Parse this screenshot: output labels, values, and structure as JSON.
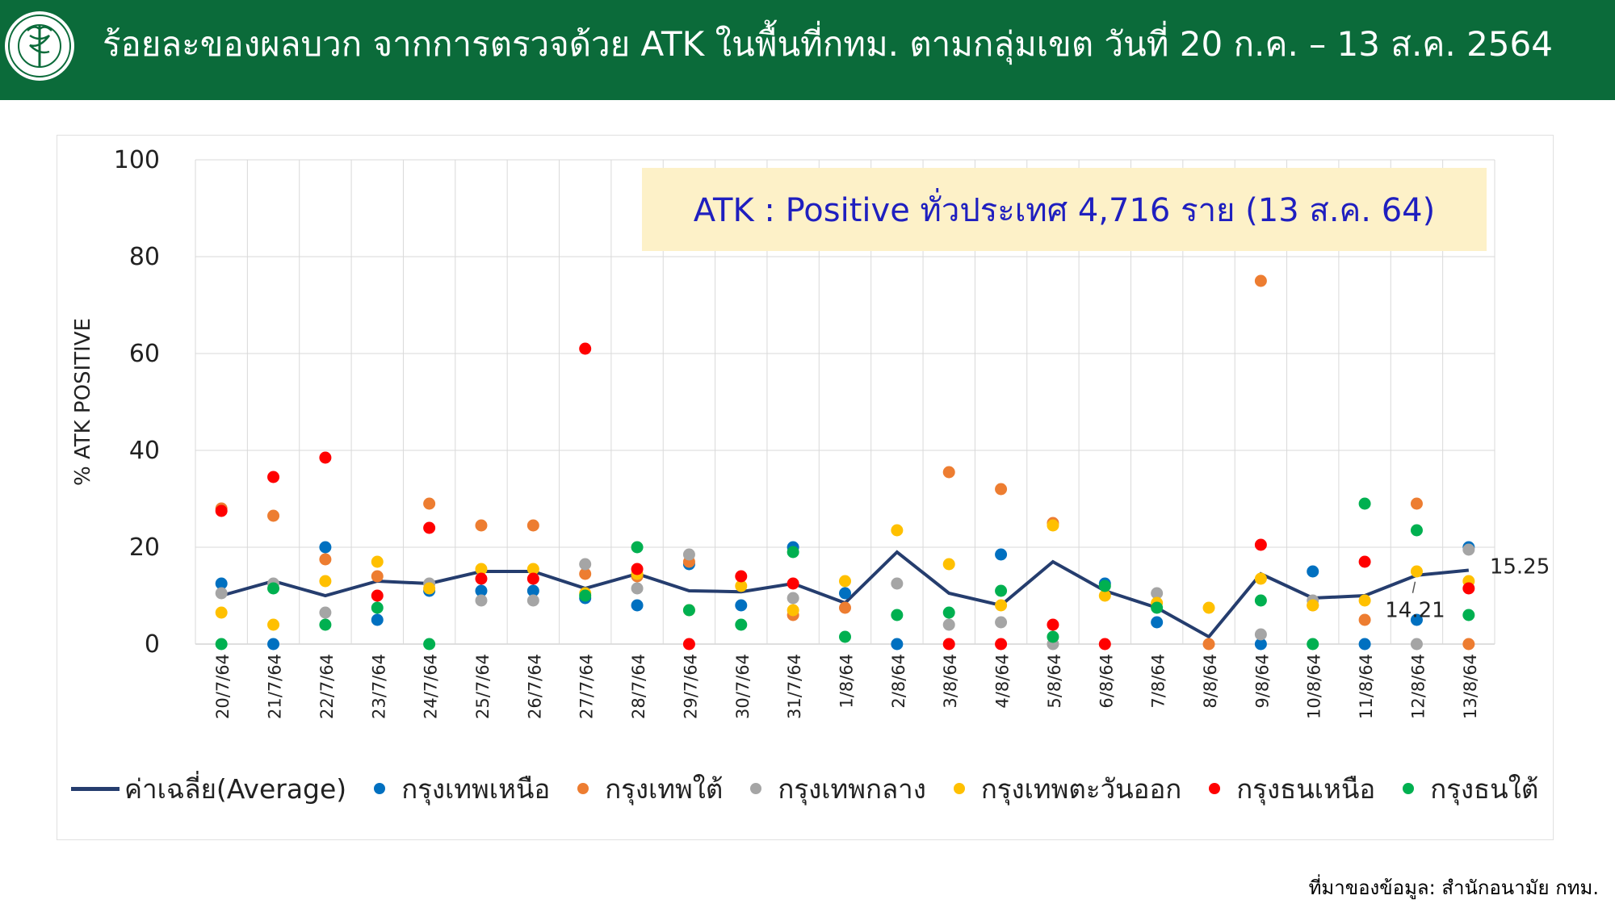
{
  "header": {
    "title": "ร้อยละของผลบวก จากการตรวจด้วย ATK ในพื้นที่กทม. ตามกลุ่มเขต วันที่ 20 ก.ค. – 13 ส.ค. 2564",
    "logo_icon": "moph-seal-icon"
  },
  "callout": {
    "text": "ATK : Positive ทั่วประเทศ 4,716 ราย (13 ส.ค. 64)"
  },
  "source": {
    "text": "ที่มาของข้อมูล: สำนักอนามัย กทม."
  },
  "colors": {
    "header_bg": "#0b6b3a",
    "average": "#253d6e",
    "north": "#0070c0",
    "south": "#ed7d31",
    "central": "#a5a5a5",
    "east": "#ffc000",
    "thon_north": "#ff0000",
    "thon_south": "#00b050"
  },
  "chart_data": {
    "type": "scatter",
    "title": "",
    "xlabel": "",
    "ylabel": "% ATK POSITIVE",
    "ylim": [
      0,
      100
    ],
    "yticks": [
      0,
      20,
      40,
      60,
      80,
      100
    ],
    "grid": true,
    "legend_position": "bottom",
    "categories": [
      "20/7/64",
      "21/7/64",
      "22/7/64",
      "23/7/64",
      "24/7/64",
      "25/7/64",
      "26/7/64",
      "27/7/64",
      "28/7/64",
      "29/7/64",
      "30/7/64",
      "31/7/64",
      "1/8/64",
      "2/8/64",
      "3/8/64",
      "4/8/64",
      "5/8/64",
      "6/8/64",
      "7/8/64",
      "8/8/64",
      "9/8/64",
      "10/8/64",
      "11/8/64",
      "12/8/64",
      "13/8/64"
    ],
    "series": [
      {
        "name": "ค่าเฉลี่ย(Average)",
        "key": "average",
        "kind": "line",
        "values": [
          10,
          13,
          10,
          13,
          12.5,
          15,
          15,
          11.5,
          14.5,
          11,
          10.8,
          12.5,
          8.5,
          19,
          10.5,
          8,
          17,
          11,
          7.5,
          1.5,
          14.5,
          9.5,
          10,
          14.21,
          15.25
        ]
      },
      {
        "name": "กรุงเทพเหนือ",
        "key": "north",
        "kind": "dot",
        "values": [
          12.5,
          0,
          20,
          5,
          11,
          11,
          11,
          9.5,
          8,
          16.5,
          8,
          20,
          10.5,
          0,
          null,
          18.5,
          null,
          12.5,
          4.5,
          null,
          0,
          15,
          0,
          5,
          20
        ]
      },
      {
        "name": "กรุงเทพใต้",
        "key": "south",
        "kind": "dot",
        "values": [
          28,
          26.5,
          17.5,
          14,
          29,
          24.5,
          24.5,
          14.5,
          14,
          17,
          null,
          6,
          7.5,
          null,
          35.5,
          32,
          25,
          null,
          null,
          0,
          75,
          8,
          5,
          29,
          0
        ]
      },
      {
        "name": "กรุงเทพกลาง",
        "key": "central",
        "kind": "dot",
        "values": [
          10.5,
          12.5,
          6.5,
          null,
          12.5,
          9,
          9,
          16.5,
          11.5,
          18.5,
          null,
          9.5,
          null,
          12.5,
          4,
          4.5,
          0,
          null,
          10.5,
          null,
          2,
          9,
          null,
          0,
          19.5
        ]
      },
      {
        "name": "กรุงเทพตะวันออก",
        "key": "east",
        "kind": "dot",
        "values": [
          6.5,
          4,
          13,
          17,
          11.5,
          15.5,
          15.5,
          10.5,
          14.5,
          7,
          12,
          7,
          13,
          23.5,
          16.5,
          8,
          24.5,
          10,
          8.5,
          7.5,
          13.5,
          8,
          9,
          15,
          13
        ]
      },
      {
        "name": "กรุงธนเหนือ",
        "key": "thon_north",
        "kind": "dot",
        "values": [
          27.5,
          34.5,
          38.5,
          10,
          24,
          13.5,
          13.5,
          61,
          15.5,
          0,
          14,
          12.5,
          null,
          null,
          0,
          0,
          4,
          0,
          null,
          null,
          20.5,
          null,
          17,
          null,
          11.5
        ]
      },
      {
        "name": "กรุงธนใต้",
        "key": "thon_south",
        "kind": "dot",
        "values": [
          0,
          11.5,
          4,
          7.5,
          0,
          null,
          null,
          10,
          20,
          7,
          4,
          19,
          1.5,
          6,
          6.5,
          11,
          1.5,
          12,
          7.5,
          null,
          9,
          0,
          29,
          23.5,
          6
        ]
      }
    ],
    "annotations": [
      {
        "text": "14.21",
        "category": "12/8/64",
        "value": 14.21
      },
      {
        "text": "15.25",
        "category": "13/8/64",
        "value": 15.25
      }
    ]
  }
}
